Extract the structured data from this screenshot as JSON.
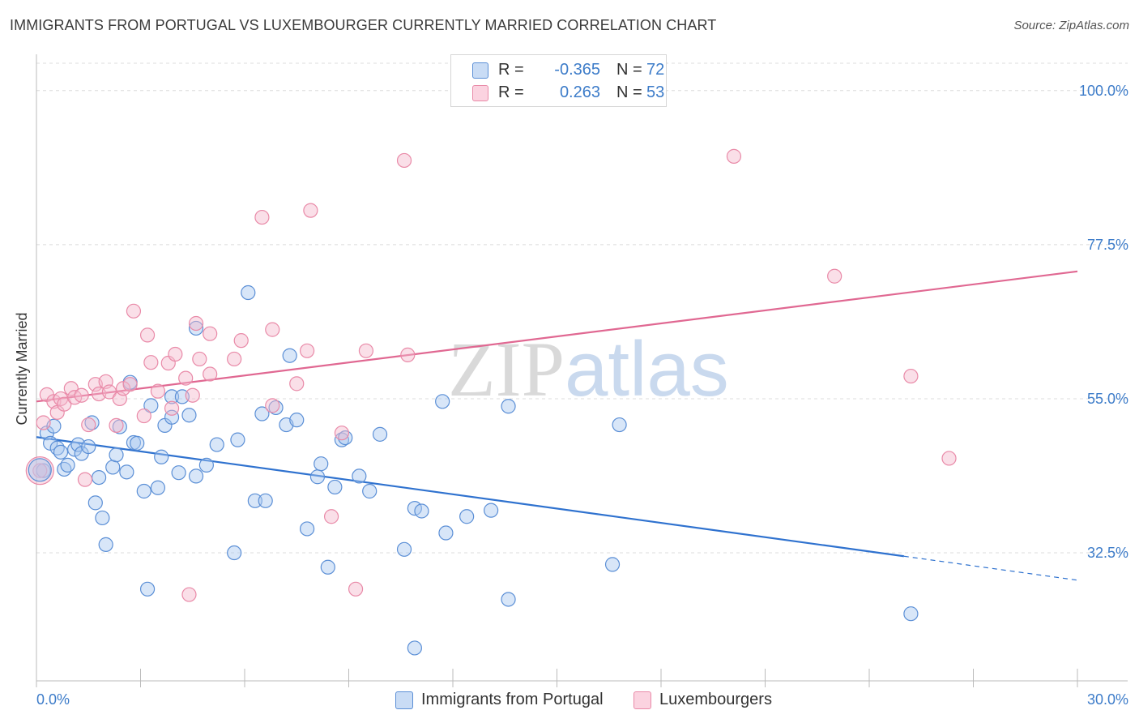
{
  "title": "IMMIGRANTS FROM PORTUGAL VS LUXEMBOURGER CURRENTLY MARRIED CORRELATION CHART",
  "source": "Source: ZipAtlas.com",
  "watermark": {
    "zip": "ZIP",
    "atlas": "atlas"
  },
  "legend": {
    "r_label": "R =",
    "n_label": "N =",
    "rows": [
      {
        "r": "-0.365",
        "n": "72",
        "color": "#a9c8f0"
      },
      {
        "r": "0.263",
        "n": "53",
        "color": "#f5b8cc"
      }
    ]
  },
  "chart_data": {
    "type": "scatter",
    "title": "IMMIGRANTS FROM PORTUGAL VS LUXEMBOURGER CURRENTLY MARRIED CORRELATION CHART",
    "xlabel": "",
    "ylabel": "Currently Married",
    "xlim": [
      0,
      30
    ],
    "ylim": [
      13.8,
      104.0
    ],
    "x_ticks": [
      "0.0%",
      "30.0%"
    ],
    "y_ticks": [
      {
        "value": 100.0,
        "label": "100.0%"
      },
      {
        "value": 77.5,
        "label": "77.5%"
      },
      {
        "value": 55.0,
        "label": "55.0%"
      },
      {
        "value": 32.5,
        "label": "32.5%"
      }
    ],
    "grid": true,
    "legend_position": "top-center",
    "series": [
      {
        "name": "Immigrants from Portugal",
        "color": "#a9c8f0",
        "stroke": "#5b8fd6",
        "trend_color": "#2f72cf",
        "trend": {
          "x0": 0.0,
          "y0": 49.4,
          "x1": 25.0,
          "y1": 32.0,
          "dash_x1": 30.0,
          "dash_y1": 28.5
        },
        "points": [
          [
            0.2,
            44.5
          ],
          [
            0.3,
            50.0
          ],
          [
            0.4,
            48.5
          ],
          [
            0.5,
            51.0
          ],
          [
            0.6,
            47.8
          ],
          [
            0.7,
            47.2
          ],
          [
            0.8,
            44.7
          ],
          [
            0.9,
            45.3
          ],
          [
            1.1,
            47.6
          ],
          [
            1.2,
            48.3
          ],
          [
            1.3,
            47.0
          ],
          [
            1.5,
            48.0
          ],
          [
            1.6,
            51.5
          ],
          [
            1.7,
            39.8
          ],
          [
            1.8,
            43.5
          ],
          [
            1.9,
            37.6
          ],
          [
            2.0,
            33.7
          ],
          [
            2.2,
            45.0
          ],
          [
            2.3,
            46.8
          ],
          [
            2.4,
            50.9
          ],
          [
            2.6,
            44.3
          ],
          [
            2.7,
            57.4
          ],
          [
            2.8,
            48.6
          ],
          [
            2.9,
            48.5
          ],
          [
            3.1,
            41.5
          ],
          [
            3.2,
            27.2
          ],
          [
            3.3,
            54.0
          ],
          [
            3.5,
            42.0
          ],
          [
            3.6,
            46.5
          ],
          [
            3.7,
            51.1
          ],
          [
            3.9,
            52.3
          ],
          [
            3.9,
            55.3
          ],
          [
            4.1,
            44.2
          ],
          [
            4.2,
            55.3
          ],
          [
            4.4,
            52.6
          ],
          [
            4.6,
            43.7
          ],
          [
            4.6,
            65.3
          ],
          [
            4.9,
            45.3
          ],
          [
            5.2,
            48.3
          ],
          [
            5.7,
            32.5
          ],
          [
            5.8,
            49.0
          ],
          [
            6.1,
            70.5
          ],
          [
            6.3,
            40.1
          ],
          [
            6.5,
            52.8
          ],
          [
            6.6,
            40.1
          ],
          [
            6.9,
            53.7
          ],
          [
            7.2,
            51.2
          ],
          [
            7.3,
            61.3
          ],
          [
            7.5,
            51.9
          ],
          [
            7.8,
            36.0
          ],
          [
            8.1,
            43.6
          ],
          [
            8.2,
            45.5
          ],
          [
            8.4,
            30.4
          ],
          [
            8.6,
            42.1
          ],
          [
            8.8,
            49.0
          ],
          [
            8.9,
            49.3
          ],
          [
            9.3,
            43.7
          ],
          [
            9.6,
            41.5
          ],
          [
            9.9,
            49.8
          ],
          [
            10.6,
            33.0
          ],
          [
            10.9,
            39.0
          ],
          [
            10.9,
            18.6
          ],
          [
            11.1,
            38.6
          ],
          [
            11.7,
            54.6
          ],
          [
            11.8,
            35.4
          ],
          [
            12.4,
            37.8
          ],
          [
            13.1,
            38.7
          ],
          [
            13.6,
            25.7
          ],
          [
            13.6,
            53.9
          ],
          [
            16.6,
            30.8
          ],
          [
            16.8,
            51.2
          ],
          [
            25.2,
            23.6
          ]
        ]
      },
      {
        "name": "Luxembourgers",
        "color": "#f5b8cc",
        "stroke": "#e98aa8",
        "trend_color": "#e06892",
        "trend": {
          "x0": 0.0,
          "y0": 54.6,
          "x1": 30.0,
          "y1": 73.6
        },
        "points": [
          [
            0.1,
            44.5
          ],
          [
            0.2,
            51.5
          ],
          [
            0.3,
            55.6
          ],
          [
            0.5,
            54.6
          ],
          [
            0.6,
            53.0
          ],
          [
            0.7,
            55.0
          ],
          [
            0.8,
            54.2
          ],
          [
            1.0,
            56.5
          ],
          [
            1.1,
            55.2
          ],
          [
            1.3,
            55.5
          ],
          [
            1.4,
            43.2
          ],
          [
            1.5,
            51.2
          ],
          [
            1.7,
            57.1
          ],
          [
            1.8,
            55.7
          ],
          [
            2.0,
            57.5
          ],
          [
            2.1,
            56.0
          ],
          [
            2.3,
            51.1
          ],
          [
            2.4,
            55.0
          ],
          [
            2.5,
            56.5
          ],
          [
            2.7,
            57.1
          ],
          [
            2.8,
            67.8
          ],
          [
            3.1,
            52.5
          ],
          [
            3.2,
            64.3
          ],
          [
            3.3,
            60.3
          ],
          [
            3.5,
            56.1
          ],
          [
            3.8,
            60.2
          ],
          [
            3.9,
            53.6
          ],
          [
            4.0,
            61.5
          ],
          [
            4.3,
            58.0
          ],
          [
            4.4,
            26.4
          ],
          [
            4.5,
            55.5
          ],
          [
            4.6,
            66.0
          ],
          [
            4.7,
            60.8
          ],
          [
            5.0,
            58.6
          ],
          [
            5.0,
            64.5
          ],
          [
            5.7,
            60.8
          ],
          [
            5.9,
            63.5
          ],
          [
            6.5,
            81.5
          ],
          [
            6.8,
            65.1
          ],
          [
            6.8,
            54.0
          ],
          [
            7.5,
            57.2
          ],
          [
            7.8,
            62.0
          ],
          [
            7.9,
            82.5
          ],
          [
            8.5,
            37.8
          ],
          [
            8.8,
            50.0
          ],
          [
            9.2,
            27.2
          ],
          [
            9.5,
            62.0
          ],
          [
            10.6,
            89.8
          ],
          [
            10.7,
            61.4
          ],
          [
            20.1,
            90.4
          ],
          [
            23.0,
            72.9
          ],
          [
            25.2,
            58.3
          ],
          [
            26.3,
            46.3
          ]
        ]
      }
    ]
  }
}
